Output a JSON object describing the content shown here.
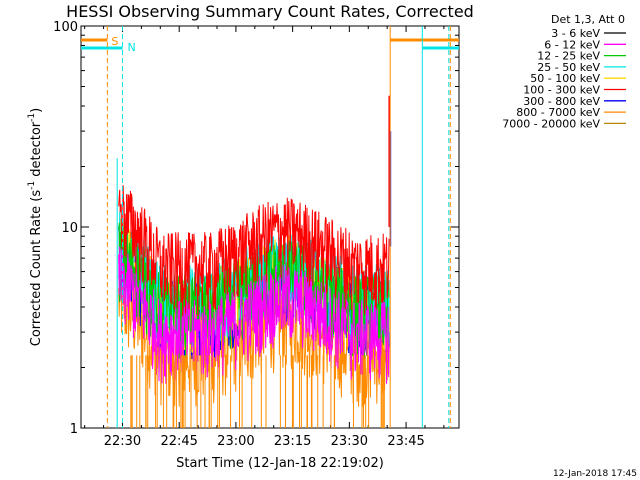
{
  "chart_data": {
    "type": "line",
    "title": "HESSI Observing Summary Count Rates, Corrected",
    "xlabel": "Start Time (12-Jan-18 22:19:02)",
    "ylabel_main": "Corrected Count Rate (s",
    "ylabel_sup1": "-1",
    "ylabel_mid": " detector",
    "ylabel_sup2": "-1",
    "ylabel_end": ")",
    "yscale": "log",
    "ylim": [
      1,
      100
    ],
    "xlim_min": [
      19.03,
      81.5
    ],
    "x_ticks": [
      {
        "min": 30,
        "label": "22:30"
      },
      {
        "min": 45,
        "label": "22:45"
      },
      {
        "min": 60,
        "label": "23:00"
      },
      {
        "min": 75,
        "label": "23:15"
      },
      {
        "min": 90,
        "label": "23:30"
      },
      {
        "min": 105,
        "label": "23:45"
      }
    ],
    "y_ticks": [
      {
        "v": 1,
        "label": "1"
      },
      {
        "v": 10,
        "label": "10"
      },
      {
        "v": 100,
        "label": "100"
      }
    ],
    "legend_header": "Det 1,3, Att 0",
    "series": [
      {
        "name": "3 - 6 keV",
        "color": "#000000",
        "level": 0
      },
      {
        "name": "6 - 12 keV",
        "color": "#ff00ff",
        "level": 3.0
      },
      {
        "name": "12 - 25 keV",
        "color": "#00cc00",
        "level": 4.0
      },
      {
        "name": "25 - 50 keV",
        "color": "#00e5e5",
        "level": 4.5
      },
      {
        "name": "50 - 100 keV",
        "color": "#ffd700",
        "level": 4.2
      },
      {
        "name": "100 - 300 keV",
        "color": "#ff0000",
        "level": 6.5
      },
      {
        "name": "300 - 800 keV",
        "color": "#0000ff",
        "level": 4.0
      },
      {
        "name": "800 - 7000 keV",
        "color": "#ff8c00",
        "level": 2.3
      },
      {
        "name": "7000 - 20000 keV",
        "color": "#b8860b",
        "level": 0
      }
    ],
    "markers": [
      {
        "label": "S",
        "color": "#ff8c00",
        "start_min": 19.03,
        "end_min": 26
      },
      {
        "label": "N",
        "color": "#00e5e5",
        "start_min": 19.03,
        "end_min": 30
      }
    ],
    "timestamp": "12-Jan-2018 17:45"
  }
}
